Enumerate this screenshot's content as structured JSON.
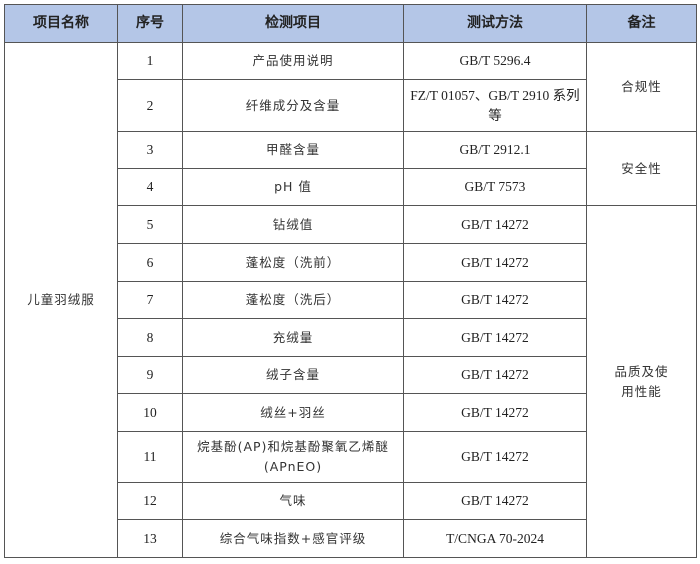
{
  "headers": [
    "项目名称",
    "序号",
    "检测项目",
    "测试方法",
    "备注"
  ],
  "product": "儿童羽绒服",
  "rows": [
    {
      "no": "1",
      "item": "产品使用说明",
      "method": "GB/T 5296.4"
    },
    {
      "no": "2",
      "item": "纤维成分及含量",
      "method": "FZ/T 01057、GB/T 2910 系列等"
    },
    {
      "no": "3",
      "item": "甲醛含量",
      "method": "GB/T 2912.1"
    },
    {
      "no": "4",
      "item": "pH 值",
      "method": "GB/T 7573"
    },
    {
      "no": "5",
      "item": "钻绒值",
      "method": "GB/T 14272"
    },
    {
      "no": "6",
      "item": "蓬松度（洗前）",
      "method": "GB/T 14272"
    },
    {
      "no": "7",
      "item": "蓬松度（洗后）",
      "method": "GB/T 14272"
    },
    {
      "no": "8",
      "item": "充绒量",
      "method": "GB/T 14272"
    },
    {
      "no": "9",
      "item": "绒子含量",
      "method": "GB/T 14272"
    },
    {
      "no": "10",
      "item": "绒丝+羽丝",
      "method": "GB/T 14272"
    },
    {
      "no": "11",
      "item": "烷基酚(AP)和烷基酚聚氧乙烯醚(APnEO)",
      "method": "GB/T 14272"
    },
    {
      "no": "12",
      "item": "气味",
      "method": "GB/T 14272"
    },
    {
      "no": "13",
      "item": "综合气味指数+感官评级",
      "method": "T/CNGA 70-2024"
    }
  ],
  "remarks": [
    "合规性",
    "安全性",
    "品质及使用性能"
  ],
  "colors": {
    "header_bg": "#b4c6e7",
    "border": "#555555"
  }
}
